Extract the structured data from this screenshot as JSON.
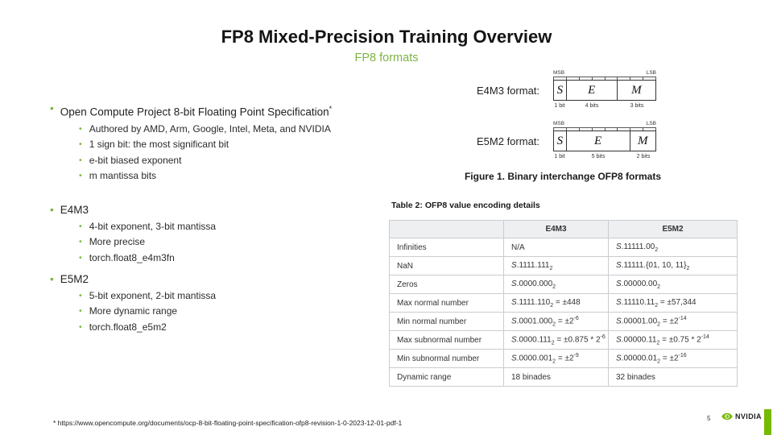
{
  "colors": {
    "accent_green": "#76b900",
    "bullet_green": "#7cb342",
    "table_border": "#c9ccd1",
    "table_header_bg": "#edeff1"
  },
  "header": {
    "title": "FP8 Mixed-Precision Training Overview",
    "subtitle": "FP8 formats"
  },
  "bullets": [
    {
      "label": "Open Compute Project 8-bit Floating Point Specification",
      "superscript": "*",
      "children": [
        "Authored by AMD, Arm, Google, Intel, Meta, and NVIDIA",
        "1 sign bit: the most significant bit",
        "e-bit biased exponent",
        "m mantissa bits"
      ]
    },
    {
      "label": "E4M3",
      "superscript": "",
      "children": [
        "4-bit exponent, 3-bit mantissa",
        "More precise",
        "torch.float8_e4m3fn"
      ]
    },
    {
      "label": "E5M2",
      "superscript": "",
      "children": [
        "5-bit exponent, 2-bit mantissa",
        "More dynamic range",
        "torch.float8_e5m2"
      ]
    }
  ],
  "diagrams": [
    {
      "id": "e4m3",
      "label": "E4M3 format:",
      "msb": "MSB",
      "lsb": "LSB",
      "fields": [
        {
          "symbol": "S",
          "bits": 1,
          "bits_label": "1 bit"
        },
        {
          "symbol": "E",
          "bits": 4,
          "bits_label": "4 bits"
        },
        {
          "symbol": "M",
          "bits": 3,
          "bits_label": "3 bits"
        }
      ]
    },
    {
      "id": "e5m2",
      "label": "E5M2 format:",
      "msb": "MSB",
      "lsb": "LSB",
      "fields": [
        {
          "symbol": "S",
          "bits": 1,
          "bits_label": "1 bit"
        },
        {
          "symbol": "E",
          "bits": 5,
          "bits_label": "5 bits"
        },
        {
          "symbol": "M",
          "bits": 2,
          "bits_label": "2 bits"
        }
      ]
    }
  ],
  "figure_caption": "Figure 1. Binary interchange OFP8 formats",
  "table": {
    "caption": "Table 2: OFP8 value encoding details",
    "headers": [
      "",
      "E4M3",
      "E5M2"
    ],
    "rows": [
      {
        "label": "Infinities",
        "e4m3": "N/A",
        "e5m2": "S.11111.00₂"
      },
      {
        "label": "NaN",
        "e4m3": "S.1111.111₂",
        "e5m2": "S.11111.{01, 10, 11}₂"
      },
      {
        "label": "Zeros",
        "e4m3": "S.0000.000₂",
        "e5m2": "S.00000.00₂"
      },
      {
        "label": "Max normal number",
        "e4m3": "S.1111.110₂ = ±448",
        "e5m2": "S.11110.11₂ = ±57,344"
      },
      {
        "label": "Min normal number",
        "e4m3": "S.0001.000₂ = ±2⁻⁶",
        "e5m2": "S.00001.00₂ = ±2⁻¹⁴"
      },
      {
        "label": "Max subnormal number",
        "e4m3": "S.0000.111₂ = ±0.875 * 2⁻⁶",
        "e5m2": "S.00000.11₂ = ±0.75 * 2⁻¹⁴"
      },
      {
        "label": "Min subnormal number",
        "e4m3": "S.0000.001₂ = ±2⁻⁹",
        "e5m2": "S.00000.01₂ = ±2⁻¹⁶"
      },
      {
        "label": "Dynamic range",
        "e4m3": "18 binades",
        "e5m2": "32 binades"
      }
    ]
  },
  "footer": {
    "footnote": "* https://www.opencompute.org/documents/ocp-8-bit-floating-point-specification-ofp8-revision-1-0-2023-12-01-pdf-1",
    "page_number": "5",
    "logo_text": "NVIDIA"
  }
}
